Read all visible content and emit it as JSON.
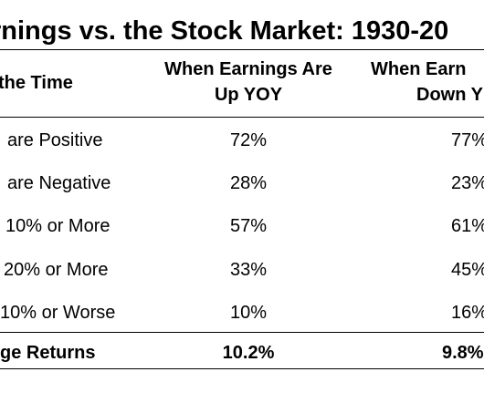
{
  "title": "rnings vs. the Stock Market: 1930-20",
  "table": {
    "headers": {
      "row_label": "the Time",
      "col1_line1": "When Earnings Are",
      "col1_line2": "Up YOY",
      "col2_line1": "When Earn",
      "col2_line2": "Down Y"
    },
    "rows": [
      {
        "label": "are Positive",
        "up": "72%",
        "down": "77%"
      },
      {
        "label": "are Negative",
        "up": "28%",
        "down": "23%"
      },
      {
        "label": "10% or More",
        "up": "57%",
        "down": "61%"
      },
      {
        "label": "20% or More",
        "up": "33%",
        "down": "45%"
      },
      {
        "label": "10% or Worse",
        "up": "10%",
        "down": "16%"
      }
    ],
    "footer": {
      "label": "ge Returns",
      "up": "10.2%",
      "down": "9.8%"
    }
  }
}
